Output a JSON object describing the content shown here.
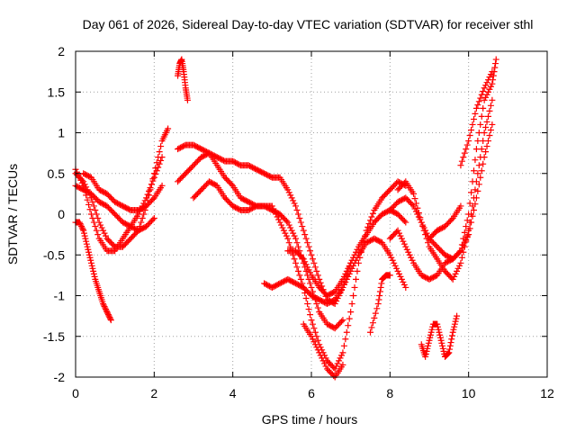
{
  "chart_data": {
    "type": "scatter",
    "title": "Day 061 of 2026, Sidereal Day-to-day VTEC variation (SDTVAR) for receiver sthl",
    "xlabel": "GPS time / hours",
    "ylabel": "SDTVAR / TECUs",
    "xlim": [
      0,
      12
    ],
    "ylim": [
      -2,
      2
    ],
    "xticks": [
      "0",
      "2",
      "4",
      "6",
      "8",
      "10",
      "12"
    ],
    "yticks": [
      "-2",
      "-1.5",
      "-1",
      "-0.5",
      "0",
      "0.5",
      "1",
      "1.5",
      "2"
    ],
    "grid": true,
    "marker": "+",
    "color": "#ff0000",
    "series": [
      {
        "x": [
          0,
          0.2,
          0.4,
          0.6,
          0.8,
          1.0,
          1.2,
          1.4,
          1.6,
          1.8,
          2.0,
          2.2,
          2.35
        ],
        "y": [
          0.5,
          0.4,
          0.2,
          -0.1,
          -0.3,
          -0.4,
          -0.4,
          -0.3,
          -0.2,
          0.1,
          0.5,
          0.9,
          1.05
        ]
      },
      {
        "x": [
          0,
          0.2,
          0.4,
          0.6,
          0.8,
          1.0,
          1.2,
          1.4,
          1.6,
          1.8,
          2.0,
          2.2
        ],
        "y": [
          0.55,
          0.35,
          0.0,
          -0.3,
          -0.45,
          -0.45,
          -0.3,
          -0.15,
          0.0,
          0.2,
          0.45,
          0.7
        ]
      },
      {
        "x": [
          0,
          0.2,
          0.4,
          0.6,
          0.8,
          1.0,
          1.2,
          1.4,
          1.6,
          1.8,
          2.0
        ],
        "y": [
          0.35,
          0.3,
          0.25,
          0.15,
          0.1,
          0.0,
          -0.1,
          -0.15,
          -0.2,
          -0.15,
          -0.05
        ]
      },
      {
        "x": [
          0,
          0.1,
          0.2,
          0.3,
          0.4,
          0.5,
          0.6,
          0.7,
          0.8,
          0.9
        ],
        "y": [
          -0.1,
          -0.1,
          -0.2,
          -0.4,
          -0.6,
          -0.8,
          -0.95,
          -1.1,
          -1.2,
          -1.3
        ]
      },
      {
        "x": [
          0.2,
          0.4,
          0.6,
          0.8,
          1.0,
          1.2,
          1.4,
          1.6,
          1.8,
          2.0,
          2.2
        ],
        "y": [
          0.5,
          0.45,
          0.3,
          0.25,
          0.15,
          0.1,
          0.05,
          0.05,
          0.1,
          0.2,
          0.35
        ]
      },
      {
        "x": [
          2.6,
          2.65,
          2.7,
          2.75,
          2.8,
          2.85
        ],
        "y": [
          1.7,
          1.85,
          1.9,
          1.75,
          1.55,
          1.4
        ]
      },
      {
        "x": [
          2.6,
          2.8,
          3.0,
          3.2,
          3.4,
          3.6,
          3.8,
          4.0,
          4.2,
          4.4,
          4.6,
          4.8,
          5.0,
          5.2,
          5.4,
          5.6,
          5.8,
          6.0,
          6.2,
          6.4,
          6.6,
          6.8,
          7.0
        ],
        "y": [
          0.8,
          0.85,
          0.85,
          0.8,
          0.75,
          0.7,
          0.65,
          0.65,
          0.6,
          0.6,
          0.55,
          0.5,
          0.45,
          0.45,
          0.3,
          0.1,
          -0.2,
          -0.5,
          -0.8,
          -1.05,
          -1.1,
          -0.9,
          -0.6
        ]
      },
      {
        "x": [
          2.6,
          2.8,
          3.0,
          3.2,
          3.4,
          3.6,
          3.8,
          4.0,
          4.2,
          4.4,
          4.6,
          4.8,
          5.0,
          5.2,
          5.4,
          5.6,
          5.8,
          6.0,
          6.2,
          6.4,
          6.6,
          6.8
        ],
        "y": [
          0.4,
          0.5,
          0.6,
          0.7,
          0.75,
          0.6,
          0.45,
          0.35,
          0.2,
          0.15,
          0.1,
          0.1,
          0.05,
          0.0,
          -0.1,
          -0.3,
          -0.6,
          -0.9,
          -1.2,
          -1.35,
          -1.4,
          -1.3
        ]
      },
      {
        "x": [
          3.0,
          3.2,
          3.4,
          3.6,
          3.8,
          4.0,
          4.2,
          4.4,
          4.6,
          4.8,
          5.0,
          5.2,
          5.4,
          5.6,
          5.8,
          6.0,
          6.2,
          6.4,
          6.6,
          6.8,
          7.0,
          7.2,
          7.4,
          7.6,
          7.8,
          8.0,
          8.2,
          8.4
        ],
        "y": [
          0.2,
          0.3,
          0.4,
          0.35,
          0.2,
          0.1,
          0.05,
          0.05,
          0.1,
          0.1,
          0.1,
          -0.1,
          -0.3,
          -0.6,
          -0.9,
          -1.3,
          -1.6,
          -1.8,
          -1.9,
          -1.7,
          -1.2,
          -0.6,
          -0.2,
          0.05,
          0.2,
          0.3,
          0.4,
          0.35
        ]
      },
      {
        "x": [
          5.4,
          5.6,
          5.8,
          6.0,
          6.2,
          6.4,
          6.6,
          6.8,
          7.0,
          7.2,
          7.4,
          7.6,
          7.8,
          8.0,
          8.2,
          8.4
        ],
        "y": [
          -0.45,
          -0.45,
          -0.55,
          -0.75,
          -0.9,
          -1.0,
          -0.95,
          -0.8,
          -0.6,
          -0.4,
          -0.25,
          -0.1,
          0.0,
          0.05,
          0.0,
          -0.1
        ]
      },
      {
        "x": [
          4.8,
          5.0,
          5.2,
          5.4,
          5.6,
          5.8,
          6.0,
          6.2,
          6.4,
          6.6,
          6.8,
          7.0,
          7.2,
          7.4,
          7.6,
          7.8,
          8.0,
          8.2,
          8.4
        ],
        "y": [
          -0.85,
          -0.9,
          -0.85,
          -0.8,
          -0.85,
          -0.9,
          -1.0,
          -1.05,
          -1.1,
          -1.05,
          -0.9,
          -0.7,
          -0.5,
          -0.35,
          -0.3,
          -0.35,
          -0.5,
          -0.7,
          -0.9
        ]
      },
      {
        "x": [
          5.8,
          6.0,
          6.2,
          6.4,
          6.6,
          6.8
        ],
        "y": [
          -1.35,
          -1.5,
          -1.7,
          -1.9,
          -2.0,
          -1.85
        ]
      },
      {
        "x": [
          7.5,
          7.7,
          7.8,
          7.9,
          8.0
        ],
        "y": [
          -1.45,
          -1.1,
          -0.8,
          -0.75,
          -0.75
        ]
      },
      {
        "x": [
          8.0,
          8.2,
          8.4,
          8.6,
          8.8,
          9.0,
          9.2,
          9.4,
          9.6,
          9.8,
          10.0,
          10.2,
          10.4,
          10.6
        ],
        "y": [
          -0.3,
          -0.2,
          -0.4,
          -0.6,
          -0.75,
          -0.8,
          -0.75,
          -0.6,
          -0.55,
          -0.45,
          -0.25,
          0.2,
          0.7,
          1.1
        ]
      },
      {
        "x": [
          8.2,
          8.4,
          8.6,
          8.8,
          9.0,
          9.2,
          9.4,
          9.6,
          9.8,
          10.0,
          10.2,
          10.4,
          10.6
        ],
        "y": [
          0.3,
          0.4,
          0.25,
          -0.1,
          -0.4,
          -0.55,
          -0.7,
          -0.8,
          -0.6,
          -0.2,
          0.4,
          1.0,
          1.4
        ]
      },
      {
        "x": [
          8.0,
          8.2,
          8.4,
          8.6,
          8.8,
          9.0,
          9.2,
          9.4,
          9.6,
          9.8,
          10.0,
          10.2,
          10.4,
          10.6,
          10.7
        ],
        "y": [
          0.05,
          0.15,
          0.2,
          0.1,
          -0.1,
          -0.3,
          -0.4,
          -0.5,
          -0.55,
          -0.45,
          0.0,
          0.8,
          1.4,
          1.6,
          1.9
        ]
      },
      {
        "x": [
          8.8,
          8.9,
          9.0,
          9.1,
          9.2,
          9.3,
          9.4,
          9.5,
          9.6,
          9.7
        ],
        "y": [
          -1.6,
          -1.75,
          -1.55,
          -1.35,
          -1.35,
          -1.55,
          -1.75,
          -1.7,
          -1.45,
          -1.25
        ]
      },
      {
        "x": [
          9.0,
          9.2,
          9.4,
          9.6,
          9.8
        ],
        "y": [
          -0.3,
          -0.2,
          -0.15,
          -0.05,
          0.1
        ]
      },
      {
        "x": [
          9.8,
          10.0,
          10.2,
          10.4,
          10.6
        ],
        "y": [
          0.6,
          0.9,
          1.3,
          1.55,
          1.75
        ]
      }
    ]
  }
}
